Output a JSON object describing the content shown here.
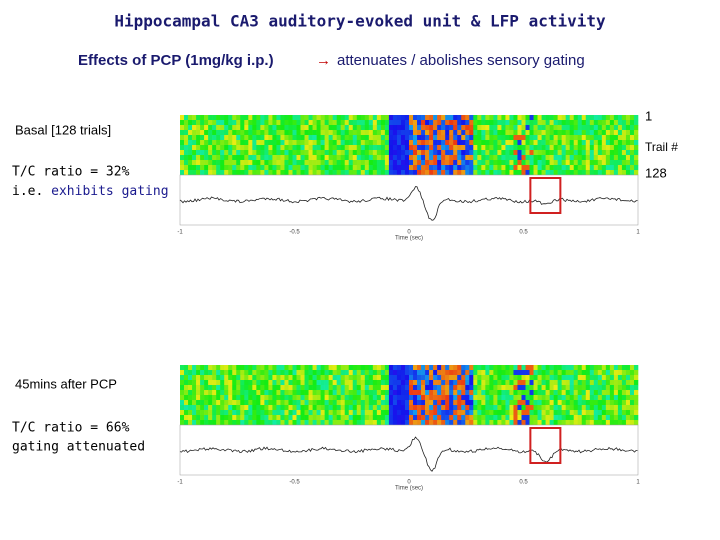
{
  "title": "Hippocampal CA3 auditory-evoked unit & LFP activity",
  "subtitle": {
    "before": "Effects of PCP (1mg/kg i.p.)",
    "arrow": "→",
    "after": "attenuates / abolishes sensory gating"
  },
  "trial_axis": {
    "first": "1",
    "label": "Trail #",
    "last": "128"
  },
  "panels": [
    {
      "condition": "Basal [128 trials]",
      "ratio": "T/C ratio = 32%",
      "note_prefix": "i.e.",
      "note": "exhibits gating",
      "x_ticks": [
        "-1",
        "-0.5",
        "0",
        "0.5",
        "1"
      ],
      "x_label": "Time (sec)"
    },
    {
      "condition": "45mins after PCP",
      "ratio": "T/C ratio = 66%",
      "note_prefix": "",
      "note": "gating attenuated",
      "x_ticks": [
        "-1",
        "-0.5",
        "0",
        "0.5",
        "1"
      ],
      "x_label": "Time (sec)"
    }
  ]
}
